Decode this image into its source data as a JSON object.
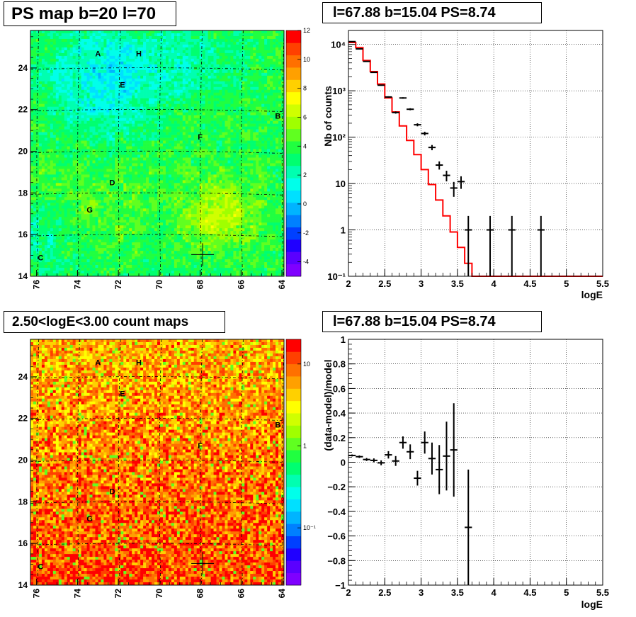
{
  "panels": {
    "ps_map": {
      "title": "PS map b=20 l=70",
      "colorbar_ticks": [
        "12",
        "10",
        "8",
        "6",
        "4",
        "2",
        "0",
        "-2",
        "-4"
      ]
    },
    "spectrum": {
      "title": "l=67.88 b=15.04 PS=8.74"
    },
    "count_map": {
      "title": "2.50<logE<3.00 count maps",
      "colorbar_ticks": [
        "10",
        "1",
        "10⁻¹"
      ]
    },
    "residual": {
      "title": "l=67.88 b=15.04 PS=8.74"
    }
  },
  "sky_labels": {
    "x_ticks": [
      "76",
      "74",
      "72",
      "70",
      "68",
      "66",
      "64"
    ],
    "y_ticks": [
      "24",
      "22",
      "20",
      "18",
      "16",
      "14"
    ],
    "sources": [
      {
        "name": "A",
        "l": 73.0,
        "b": 24.7
      },
      {
        "name": "H",
        "l": 71.0,
        "b": 24.7
      },
      {
        "name": "E",
        "l": 71.8,
        "b": 23.2
      },
      {
        "name": "B",
        "l": 64.2,
        "b": 21.7
      },
      {
        "name": "F",
        "l": 68.0,
        "b": 20.7
      },
      {
        "name": "D",
        "l": 72.3,
        "b": 18.5
      },
      {
        "name": "G",
        "l": 73.4,
        "b": 17.2
      },
      {
        "name": "C",
        "l": 75.8,
        "b": 14.9
      }
    ],
    "marker": {
      "l": 67.88,
      "b": 15.04
    }
  },
  "colors": {
    "model_line": "#ff0000",
    "data_points": "#000000",
    "grid": "#000000"
  },
  "chart_data": [
    {
      "type": "heatmap",
      "title": "PS map b=20 l=70",
      "xlim": [
        76.3,
        63.9
      ],
      "ylim": [
        14,
        25.8
      ],
      "colorbar_range": [
        -5,
        12
      ],
      "colorbar_tick_values": [
        12,
        10,
        8,
        6,
        4,
        2,
        0,
        -2,
        -4
      ]
    },
    {
      "type": "line",
      "title": "l=67.88 b=15.04 PS=8.74",
      "xlabel": "logE",
      "ylabel": "Nb of counts",
      "y_scale": "log",
      "xlim": [
        2,
        5.5
      ],
      "ylim": [
        0.1,
        20000
      ],
      "x_ticks": [
        "2",
        "2.5",
        "3",
        "3.5",
        "4",
        "4.5",
        "5",
        "5.5"
      ],
      "y_ticks": [
        {
          "label": "10⁴",
          "value": 10000
        },
        {
          "label": "10³",
          "value": 1000
        },
        {
          "label": "10²",
          "value": 100
        },
        {
          "label": "10",
          "value": 10
        },
        {
          "label": "1",
          "value": 1
        },
        {
          "label": "10⁻¹",
          "value": 0.1
        }
      ],
      "grid": true,
      "model_edges": [
        2.0,
        2.1,
        2.2,
        2.3,
        2.4,
        2.5,
        2.6,
        2.7,
        2.8,
        2.9,
        3.0,
        3.1,
        3.2,
        3.3,
        3.4,
        3.5,
        3.6,
        3.7,
        3.8,
        3.9,
        4.0,
        4.1,
        4.2,
        4.3,
        4.4,
        4.5,
        4.6,
        4.7,
        4.8,
        4.9,
        5.0,
        5.1,
        5.2,
        5.3,
        5.4,
        5.5
      ],
      "model_values": [
        11000,
        8500,
        4500,
        2600,
        1400,
        700,
        350,
        175,
        85,
        42,
        20,
        9.5,
        4.4,
        2.0,
        0.9,
        0.42,
        0.19,
        0.1,
        0.1,
        0.1,
        0.1,
        0.1,
        0.1,
        0.1,
        0.1,
        0.1,
        0.1,
        0.1,
        0.1,
        0.1,
        0.1,
        0.1,
        0.1,
        0.1,
        0.1
      ],
      "data_points": [
        {
          "x": 2.05,
          "y": 11500
        },
        {
          "x": 2.15,
          "y": 8000
        },
        {
          "x": 2.25,
          "y": 4300
        },
        {
          "x": 2.35,
          "y": 2500
        },
        {
          "x": 2.45,
          "y": 1320
        },
        {
          "x": 2.55,
          "y": 735
        },
        {
          "x": 2.65,
          "y": 340
        },
        {
          "x": 2.75,
          "y": 700
        },
        {
          "x": 2.85,
          "y": 400
        },
        {
          "x": 2.95,
          "y": 185
        },
        {
          "x": 3.05,
          "y": 120
        },
        {
          "x": 3.15,
          "y": 60
        },
        {
          "x": 3.25,
          "y": 25
        },
        {
          "x": 3.35,
          "y": 15
        },
        {
          "x": 3.45,
          "y": 8
        },
        {
          "x": 3.55,
          "y": 11
        },
        {
          "x": 3.65,
          "y": 1
        },
        {
          "x": 3.95,
          "y": 1
        },
        {
          "x": 4.25,
          "y": 1
        },
        {
          "x": 4.65,
          "y": 1
        }
      ]
    },
    {
      "type": "heatmap",
      "title": "2.50<logE<3.00 count maps",
      "xlim": [
        76.3,
        63.9
      ],
      "ylim": [
        14,
        25.8
      ],
      "color_scale": "log",
      "colorbar_range": [
        0.02,
        20
      ]
    },
    {
      "type": "scatter",
      "title": "l=67.88 b=15.04 PS=8.74",
      "xlabel": "logE",
      "ylabel": "(data-model)/model",
      "xlim": [
        2,
        5.5
      ],
      "ylim": [
        -1,
        1
      ],
      "x_ticks": [
        "2",
        "2.5",
        "3",
        "3.5",
        "4",
        "4.5",
        "5",
        "5.5"
      ],
      "y_ticks": [
        "1",
        "0.8",
        "0.6",
        "0.4",
        "0.2",
        "0",
        "−0.2",
        "−0.4",
        "−0.6",
        "−0.8",
        "−1"
      ],
      "grid": true,
      "points": [
        {
          "x": 2.05,
          "y": 0.055,
          "err": 0.008
        },
        {
          "x": 2.15,
          "y": 0.045,
          "err": 0.01
        },
        {
          "x": 2.25,
          "y": 0.022,
          "err": 0.012
        },
        {
          "x": 2.35,
          "y": 0.015,
          "err": 0.016
        },
        {
          "x": 2.45,
          "y": -0.005,
          "err": 0.02
        },
        {
          "x": 2.55,
          "y": 0.06,
          "err": 0.03
        },
        {
          "x": 2.65,
          "y": 0.01,
          "err": 0.04
        },
        {
          "x": 2.75,
          "y": 0.16,
          "err": 0.05
        },
        {
          "x": 2.85,
          "y": 0.085,
          "err": 0.06
        },
        {
          "x": 2.95,
          "y": -0.13,
          "err": 0.06
        },
        {
          "x": 3.05,
          "y": 0.16,
          "err": 0.09
        },
        {
          "x": 3.15,
          "y": 0.03,
          "err": 0.13
        },
        {
          "x": 3.25,
          "y": -0.06,
          "err": 0.2
        },
        {
          "x": 3.35,
          "y": 0.05,
          "err": 0.28
        },
        {
          "x": 3.45,
          "y": 0.1,
          "err": 0.38
        },
        {
          "x": 3.65,
          "y": -0.53,
          "err": 0.47
        }
      ]
    }
  ]
}
